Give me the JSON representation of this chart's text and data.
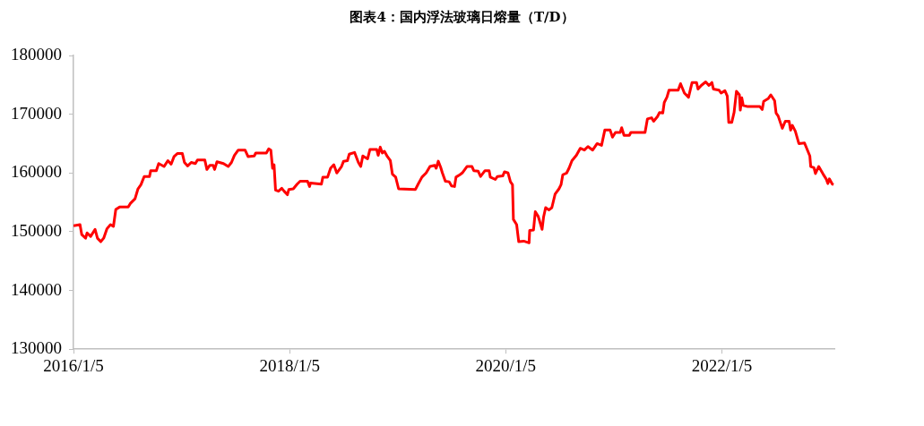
{
  "chart_data": {
    "type": "line",
    "title": "图表4：国内浮法玻璃日熔量（T/D）",
    "xlim": [
      "2016-01-05",
      "2023-01-20"
    ],
    "xticks": [
      {
        "value": "2016-01-05",
        "label": "2016/1/5"
      },
      {
        "value": "2018-01-05",
        "label": "2018/1/5"
      },
      {
        "value": "2020-01-05",
        "label": "2020/1/5"
      },
      {
        "value": "2022-01-05",
        "label": "2022/1/5"
      }
    ],
    "ylim": [
      130000,
      180000
    ],
    "yticks": [
      130000,
      140000,
      150000,
      160000,
      170000,
      180000
    ],
    "grid": false,
    "legend": false,
    "marker": "none",
    "line_style": "solid",
    "series": [
      {
        "color": "#ff0000",
        "x": [
          "2016-01-05",
          "2016-01-27",
          "2016-02-02",
          "2016-02-15",
          "2016-02-20",
          "2016-03-03",
          "2016-03-18",
          "2016-03-26",
          "2016-04-06",
          "2016-04-16",
          "2016-04-27",
          "2016-05-09",
          "2016-05-19",
          "2016-05-27",
          "2016-06-09",
          "2016-07-08",
          "2016-07-15",
          "2016-07-31",
          "2016-08-10",
          "2016-08-20",
          "2016-08-31",
          "2016-09-18",
          "2016-09-22",
          "2016-10-11",
          "2016-10-19",
          "2016-11-06",
          "2016-11-19",
          "2016-11-30",
          "2016-12-10",
          "2016-12-21",
          "2017-01-07",
          "2017-01-14",
          "2017-01-25",
          "2017-02-06",
          "2017-02-20",
          "2017-02-27",
          "2017-03-24",
          "2017-03-31",
          "2017-04-10",
          "2017-04-21",
          "2017-04-26",
          "2017-05-04",
          "2017-05-26",
          "2017-06-11",
          "2017-06-22",
          "2017-07-02",
          "2017-07-15",
          "2017-08-07",
          "2017-08-17",
          "2017-09-07",
          "2017-09-12",
          "2017-10-18",
          "2017-10-26",
          "2017-11-02",
          "2017-11-08",
          "2017-11-13",
          "2017-11-18",
          "2017-11-28",
          "2017-12-09",
          "2017-12-17",
          "2017-12-28",
          "2018-01-02",
          "2018-01-17",
          "2018-01-30",
          "2018-02-09",
          "2018-03-06",
          "2018-03-13",
          "2018-03-16",
          "2018-04-22",
          "2018-04-27",
          "2018-05-13",
          "2018-05-23",
          "2018-06-03",
          "2018-06-13",
          "2018-06-29",
          "2018-07-06",
          "2018-07-19",
          "2018-07-25",
          "2018-08-12",
          "2018-08-25",
          "2018-09-02",
          "2018-09-09",
          "2018-09-25",
          "2018-10-03",
          "2018-10-26",
          "2018-10-31",
          "2018-11-07",
          "2018-11-14",
          "2018-11-21",
          "2018-12-01",
          "2018-12-11",
          "2018-12-18",
          "2018-12-29",
          "2019-01-08",
          "2019-03-06",
          "2019-03-15",
          "2019-03-28",
          "2019-04-11",
          "2019-04-24",
          "2019-05-10",
          "2019-05-15",
          "2019-05-22",
          "2019-05-30",
          "2019-06-05",
          "2019-06-15",
          "2019-06-28",
          "2019-07-06",
          "2019-07-16",
          "2019-07-21",
          "2019-08-03",
          "2019-08-11",
          "2019-08-27",
          "2019-09-13",
          "2019-09-19",
          "2019-10-04",
          "2019-10-12",
          "2019-10-27",
          "2019-11-10",
          "2019-11-14",
          "2019-12-01",
          "2019-12-08",
          "2019-12-26",
          "2020-01-01",
          "2020-01-13",
          "2020-01-21",
          "2020-01-28",
          "2020-01-31",
          "2020-02-11",
          "2020-02-18",
          "2020-03-06",
          "2020-03-24",
          "2020-03-26",
          "2020-04-08",
          "2020-04-14",
          "2020-04-24",
          "2020-05-07",
          "2020-05-12",
          "2020-05-19",
          "2020-05-30",
          "2020-06-09",
          "2020-06-20",
          "2020-07-03",
          "2020-07-10",
          "2020-07-16",
          "2020-07-29",
          "2020-08-06",
          "2020-08-16",
          "2020-08-31",
          "2020-09-13",
          "2020-09-27",
          "2020-10-09",
          "2020-10-25",
          "2020-11-09",
          "2020-11-24",
          "2020-12-05",
          "2020-12-23",
          "2020-12-31",
          "2021-01-10",
          "2021-01-26",
          "2021-01-31",
          "2021-02-08",
          "2021-02-26",
          "2021-03-03",
          "2021-04-20",
          "2021-04-28",
          "2021-05-12",
          "2021-05-19",
          "2021-06-01",
          "2021-06-08",
          "2021-06-19",
          "2021-06-24",
          "2021-07-03",
          "2021-07-10",
          "2021-08-10",
          "2021-08-18",
          "2021-08-31",
          "2021-09-14",
          "2021-09-26",
          "2021-10-11",
          "2021-10-16",
          "2021-10-27",
          "2021-11-11",
          "2021-11-22",
          "2021-12-02",
          "2021-12-07",
          "2021-12-26",
          "2022-01-02",
          "2022-01-15",
          "2022-01-23",
          "2022-01-28",
          "2022-02-07",
          "2022-02-15",
          "2022-02-23",
          "2022-03-05",
          "2022-03-08",
          "2022-03-13",
          "2022-03-18",
          "2022-04-02",
          "2022-05-13",
          "2022-05-21",
          "2022-05-26",
          "2022-06-11",
          "2022-06-19",
          "2022-07-02",
          "2022-07-07",
          "2022-07-14",
          "2022-07-28",
          "2022-08-07",
          "2022-08-20",
          "2022-08-25",
          "2022-08-31",
          "2022-09-10",
          "2022-09-22",
          "2022-10-11",
          "2022-10-29",
          "2022-11-01",
          "2022-11-12",
          "2022-11-17",
          "2022-11-28",
          "2022-12-13",
          "2022-12-23",
          "2022-12-29",
          "2023-01-03",
          "2023-01-13",
          "2023-01-17"
        ],
        "values": [
          151000,
          151200,
          149500,
          148900,
          149800,
          149200,
          150400,
          148900,
          148300,
          148900,
          150500,
          151200,
          150900,
          153800,
          154200,
          154200,
          154800,
          155600,
          157300,
          158000,
          159400,
          159400,
          160400,
          160400,
          161600,
          161100,
          162100,
          161500,
          162800,
          163300,
          163300,
          161800,
          161200,
          161800,
          161600,
          162200,
          162200,
          160600,
          161300,
          161300,
          160600,
          161900,
          161600,
          161100,
          161800,
          163000,
          163900,
          163900,
          162800,
          162900,
          163400,
          163400,
          164100,
          163900,
          160800,
          161400,
          157100,
          156900,
          157400,
          156900,
          156300,
          157200,
          157300,
          158100,
          158600,
          158600,
          157700,
          158300,
          158100,
          159300,
          159300,
          160800,
          161400,
          160000,
          161100,
          162000,
          162100,
          163200,
          163500,
          161800,
          161100,
          162900,
          162400,
          164000,
          164000,
          163000,
          164400,
          163400,
          163700,
          162800,
          162100,
          159800,
          159300,
          157300,
          157200,
          158100,
          159300,
          160000,
          161100,
          161300,
          160800,
          162000,
          161000,
          160000,
          158600,
          158500,
          157800,
          157700,
          159300,
          159700,
          160000,
          161100,
          161100,
          160400,
          160300,
          159400,
          160400,
          160400,
          159300,
          158900,
          159400,
          159500,
          160200,
          160000,
          158500,
          158000,
          152100,
          151200,
          148300,
          148400,
          148100,
          150200,
          150300,
          153400,
          152600,
          150400,
          152500,
          154100,
          153700,
          154100,
          156400,
          157300,
          158000,
          159700,
          160000,
          160800,
          162100,
          163000,
          164200,
          163900,
          164500,
          163900,
          165000,
          164700,
          167300,
          167300,
          166100,
          166900,
          166900,
          167700,
          166400,
          166400,
          166900,
          166900,
          169200,
          169400,
          168800,
          169600,
          170300,
          170200,
          172000,
          172900,
          174100,
          174100,
          175200,
          173600,
          172900,
          175400,
          175400,
          174300,
          174900,
          175500,
          174900,
          175400,
          174300,
          174100,
          173600,
          174000,
          173100,
          168600,
          168600,
          170300,
          173900,
          173300,
          170700,
          172800,
          171500,
          171300,
          171300,
          170800,
          172200,
          172700,
          173300,
          172300,
          170200,
          169700,
          167600,
          168800,
          168800,
          167300,
          168100,
          167100,
          165000,
          165100,
          162900,
          161100,
          160900,
          159900,
          161100,
          159800,
          159000,
          158200,
          159000,
          158100,
          158000
        ]
      }
    ]
  }
}
